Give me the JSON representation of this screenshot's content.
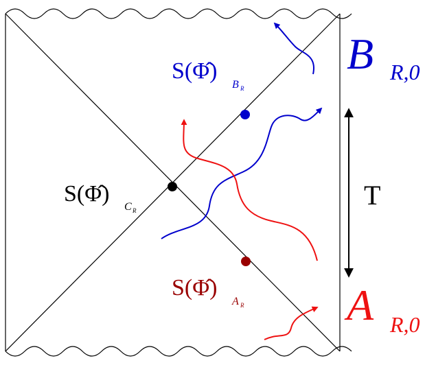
{
  "colors": {
    "outline": "#000000",
    "blue": "#0000cc",
    "red": "#ee1111",
    "dark_red": "#990000"
  },
  "labels": {
    "s_prefix": "S(",
    "phi_hat": "Φ̂",
    "s_suffix": ")",
    "center_sub": "C",
    "center_sub_sub": "R",
    "upper_sub": "B",
    "upper_sub_sub": "R",
    "lower_sub": "A",
    "lower_sub_sub": "R",
    "b_main": "B",
    "b_sub": "R,0",
    "a_main": "A",
    "a_sub": "R,0",
    "t": "T"
  }
}
